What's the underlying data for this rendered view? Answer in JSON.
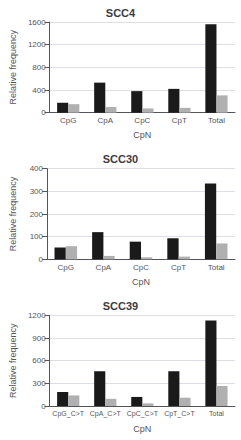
{
  "chart_data": [
    {
      "type": "bar",
      "title": "SCC4",
      "xlabel": "CpN",
      "ylabel": "Relative frequency",
      "categories": [
        "CpG",
        "CpA",
        "CpC",
        "CpT",
        "Total"
      ],
      "series": [
        {
          "color": "#1a1a1a",
          "values": [
            175,
            530,
            380,
            420,
            1560
          ]
        },
        {
          "color": "#b0b0b0",
          "values": [
            150,
            100,
            75,
            85,
            305
          ]
        }
      ],
      "ylim": [
        0,
        1600
      ],
      "yticks": [
        0,
        400,
        800,
        1200,
        1600
      ],
      "grid": true
    },
    {
      "type": "bar",
      "title": "SCC30",
      "xlabel": "CpN",
      "ylabel": "Relative frequency",
      "categories": [
        "CpG",
        "CpA",
        "CpC",
        "CpT",
        "Total"
      ],
      "series": [
        {
          "color": "#1a1a1a",
          "values": [
            52,
            120,
            78,
            93,
            335
          ]
        },
        {
          "color": "#b0b0b0",
          "values": [
            58,
            15,
            9,
            12,
            70
          ]
        }
      ],
      "ylim": [
        0,
        400
      ],
      "yticks": [
        0,
        100,
        200,
        300,
        400
      ],
      "grid": true
    },
    {
      "type": "bar",
      "title": "SCC39",
      "xlabel": "CpN",
      "ylabel": "Relative frequency",
      "categories": [
        "CpG_C>T",
        "CpA_C>T",
        "CpC_C>T",
        "CpT_C>T",
        "Total"
      ],
      "series": [
        {
          "color": "#1a1a1a",
          "values": [
            185,
            460,
            120,
            460,
            1130
          ]
        },
        {
          "color": "#b0b0b0",
          "values": [
            140,
            95,
            35,
            110,
            265
          ]
        }
      ],
      "ylim": [
        0,
        1200
      ],
      "yticks": [
        0,
        300,
        600,
        900,
        1200
      ],
      "grid": true
    }
  ]
}
